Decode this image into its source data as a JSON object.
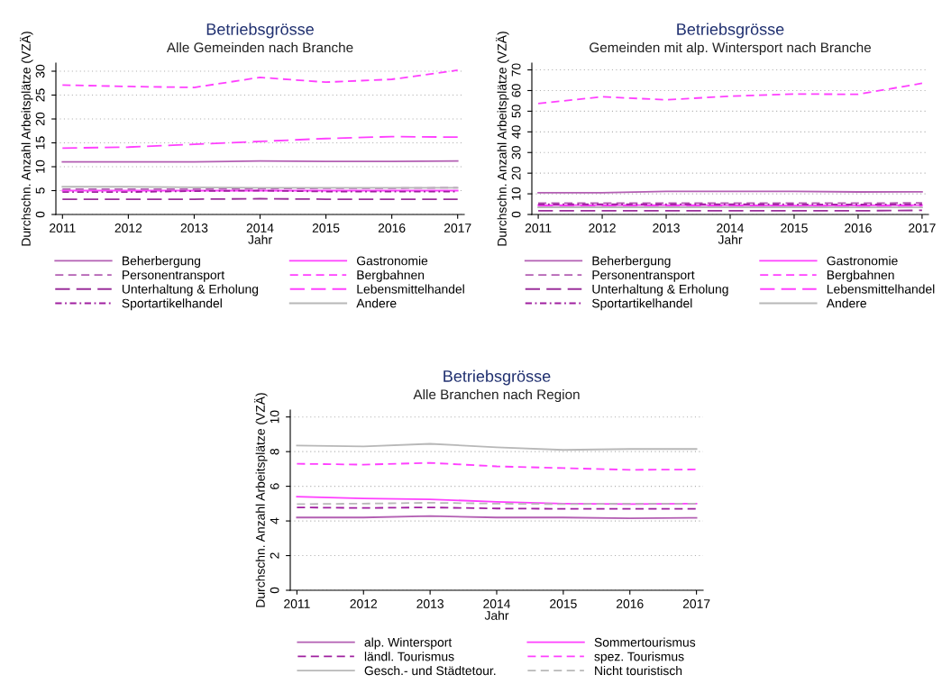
{
  "chart_data": [
    {
      "type": "line",
      "title": "Betriebsgrösse",
      "subtitle": "Alle Gemeinden nach Branche",
      "xlabel": "Jahr",
      "ylabel": "Durchschn. Anzahl Arbeitsplätze (VZÄ)",
      "x": [
        2011,
        2012,
        2013,
        2014,
        2015,
        2016,
        2017
      ],
      "xlim": [
        2010.9,
        2017.1
      ],
      "xticks": [
        2011,
        2012,
        2013,
        2014,
        2015,
        2016,
        2017
      ],
      "ylim": [
        0,
        31.7
      ],
      "yticks": [
        0,
        5,
        10,
        15,
        20,
        25,
        30
      ],
      "grid": "y",
      "legend": "bottom",
      "series": [
        {
          "name": "Beherbergung",
          "color": "#b35fb3",
          "line_style": "solid",
          "values": [
            11.0,
            11.0,
            11.0,
            11.2,
            11.1,
            11.1,
            11.2
          ]
        },
        {
          "name": "Gastronomie",
          "color": "#ff40ff",
          "line_style": "solid",
          "values": [
            5.0,
            5.0,
            5.0,
            5.0,
            5.0,
            5.0,
            5.0
          ]
        },
        {
          "name": "Personentransport",
          "color": "#b35fb3",
          "line_style": "dashed",
          "values": [
            5.3,
            5.3,
            5.3,
            5.4,
            5.5,
            5.5,
            5.6
          ]
        },
        {
          "name": "Bergbahnen",
          "color": "#ff40ff",
          "line_style": "dashed",
          "values": [
            27.1,
            26.8,
            26.6,
            28.7,
            27.7,
            28.3,
            30.2
          ]
        },
        {
          "name": "Unterhaltung & Erholung",
          "color": "#9b309b",
          "line_style": "longdashed",
          "values": [
            3.2,
            3.2,
            3.2,
            3.3,
            3.2,
            3.2,
            3.2
          ]
        },
        {
          "name": "Lebensmittelhandel",
          "color": "#ff40ff",
          "line_style": "longdashed",
          "values": [
            13.9,
            14.1,
            14.7,
            15.3,
            15.9,
            16.3,
            16.2
          ]
        },
        {
          "name": "Sportartikelhandel",
          "color": "#a020a0",
          "line_style": "dashdot",
          "values": [
            4.7,
            4.7,
            4.9,
            5.0,
            4.8,
            4.8,
            4.8
          ]
        },
        {
          "name": "Andere",
          "color": "#b8b8b8",
          "line_style": "solid",
          "values": [
            5.8,
            5.8,
            5.7,
            5.6,
            5.6,
            5.6,
            5.6
          ]
        }
      ]
    },
    {
      "type": "line",
      "title": "Betriebsgrösse",
      "subtitle": "Gemeinden mit alp. Wintersport nach Branche",
      "xlabel": "Jahr",
      "ylabel": "Durchschn. Anzahl Arbeitsplätze (VZÄ)",
      "x": [
        2011,
        2012,
        2013,
        2014,
        2015,
        2016,
        2017
      ],
      "xlim": [
        2010.9,
        2017.1
      ],
      "xticks": [
        2011,
        2012,
        2013,
        2014,
        2015,
        2016,
        2017
      ],
      "ylim": [
        0,
        73.3
      ],
      "yticks": [
        0,
        10,
        20,
        30,
        40,
        50,
        60,
        70
      ],
      "grid": "y",
      "legend": "bottom",
      "series": [
        {
          "name": "Beherbergung",
          "color": "#b35fb3",
          "line_style": "solid",
          "values": [
            10.5,
            10.5,
            11.2,
            11.2,
            11.2,
            10.9,
            11.0
          ]
        },
        {
          "name": "Gastronomie",
          "color": "#ff40ff",
          "line_style": "solid",
          "values": [
            4.5,
            4.5,
            4.5,
            4.5,
            4.3,
            4.4,
            4.5
          ]
        },
        {
          "name": "Personentransport",
          "color": "#b35fb3",
          "line_style": "dashed",
          "values": [
            5.5,
            5.5,
            5.5,
            5.5,
            5.5,
            5.5,
            5.6
          ]
        },
        {
          "name": "Bergbahnen",
          "color": "#ff40ff",
          "line_style": "dashed",
          "values": [
            53.7,
            57.0,
            55.5,
            57.3,
            58.3,
            58.2,
            63.5
          ]
        },
        {
          "name": "Unterhaltung & Erholung",
          "color": "#9b309b",
          "line_style": "longdashed",
          "values": [
            1.8,
            1.8,
            1.8,
            1.8,
            1.8,
            1.8,
            2.0
          ]
        },
        {
          "name": "Lebensmittelhandel",
          "color": "#ff40ff",
          "line_style": "longdashed",
          "values": [
            4.0,
            4.0,
            4.0,
            4.0,
            4.0,
            4.0,
            4.1
          ]
        },
        {
          "name": "Sportartikelhandel",
          "color": "#a020a0",
          "line_style": "dashdot",
          "values": [
            4.9,
            4.9,
            4.9,
            4.9,
            4.9,
            4.8,
            4.9
          ]
        },
        {
          "name": "Andere",
          "color": "#b8b8b8",
          "line_style": "solid",
          "values": [
            3.5,
            3.5,
            3.5,
            3.5,
            3.5,
            3.4,
            3.4
          ]
        }
      ]
    },
    {
      "type": "line",
      "title": "Betriebsgrösse",
      "subtitle": "Alle Branchen nach Region",
      "xlabel": "Jahr",
      "ylabel": "Durchschn. Anzahl Arbeitsplätze (VZÄ)",
      "x": [
        2011,
        2012,
        2013,
        2014,
        2015,
        2016,
        2017
      ],
      "xlim": [
        2010.9,
        2017.1
      ],
      "xticks": [
        2011,
        2012,
        2013,
        2014,
        2015,
        2016,
        2017
      ],
      "ylim": [
        0,
        10.4
      ],
      "yticks": [
        0,
        2,
        4,
        6,
        8,
        10
      ],
      "grid": "y",
      "legend": "bottom",
      "series": [
        {
          "name": "alp. Wintersport",
          "color": "#b35fb3",
          "line_style": "solid",
          "values": [
            4.2,
            4.2,
            4.28,
            4.2,
            4.2,
            4.15,
            4.18
          ]
        },
        {
          "name": "Sommertourismus",
          "color": "#ff40ff",
          "line_style": "solid",
          "values": [
            5.4,
            5.3,
            5.25,
            5.1,
            5.0,
            4.97,
            5.0
          ]
        },
        {
          "name": "ländl. Tourismus",
          "color": "#a020a0",
          "line_style": "dashed",
          "values": [
            4.78,
            4.75,
            4.78,
            4.72,
            4.7,
            4.7,
            4.7
          ]
        },
        {
          "name": "spez. Tourismus",
          "color": "#ff40ff",
          "line_style": "dashed",
          "values": [
            7.3,
            7.25,
            7.35,
            7.15,
            7.05,
            6.95,
            6.97
          ]
        },
        {
          "name": "Gesch.- und Städtetour.",
          "color": "#b8b8b8",
          "line_style": "solid",
          "values": [
            8.35,
            8.3,
            8.45,
            8.25,
            8.1,
            8.15,
            8.15
          ]
        },
        {
          "name": "Nicht touristisch",
          "color": "#b8b8b8",
          "line_style": "dashed",
          "values": [
            4.97,
            5.0,
            5.05,
            5.0,
            4.97,
            5.0,
            5.0
          ]
        }
      ]
    }
  ]
}
